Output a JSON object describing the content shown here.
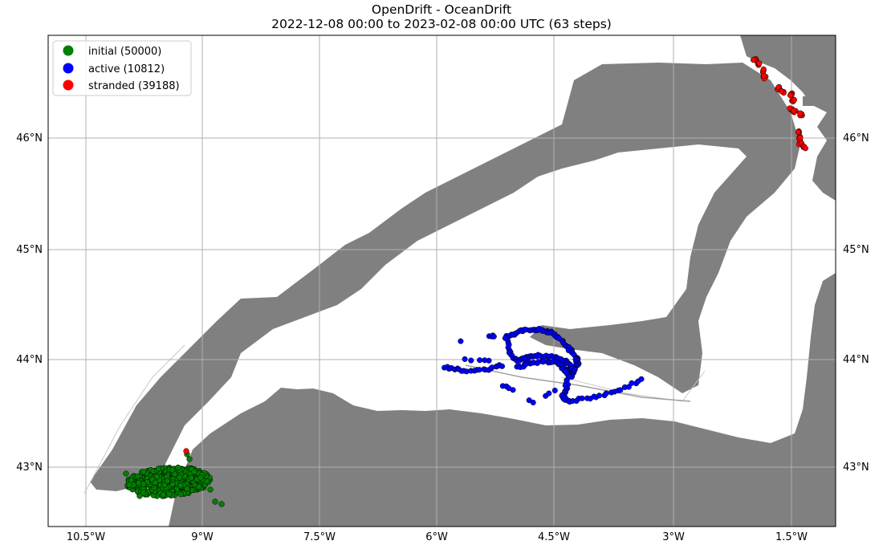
{
  "title": {
    "line1": "OpenDrift - OceanDrift",
    "line2": "2022-12-08 00:00 to 2023-02-08 00:00 UTC (63 steps)"
  },
  "legend": {
    "items": [
      {
        "label": "initial (50000)",
        "color": "#008000"
      },
      {
        "label": "active (10812)",
        "color": "#0000ff"
      },
      {
        "label": "stranded (39188)",
        "color": "#ff0000"
      }
    ]
  },
  "axes": {
    "lon_ticks": [
      "10.5°W",
      "9°W",
      "7.5°W",
      "6°W",
      "4.5°W",
      "3°W",
      "1.5°W"
    ],
    "lat_ticks_left": [
      "46°N",
      "45°N",
      "44°N",
      "43°N"
    ],
    "lat_ticks_right": [
      "46°N",
      "45°N",
      "44°N",
      "43°N"
    ]
  },
  "colors": {
    "land": "#808080",
    "trajectory": "#808080",
    "grid": "#b0b0b0",
    "initial": "#008000",
    "active": "#0000ff",
    "stranded": "#ff0000"
  }
}
